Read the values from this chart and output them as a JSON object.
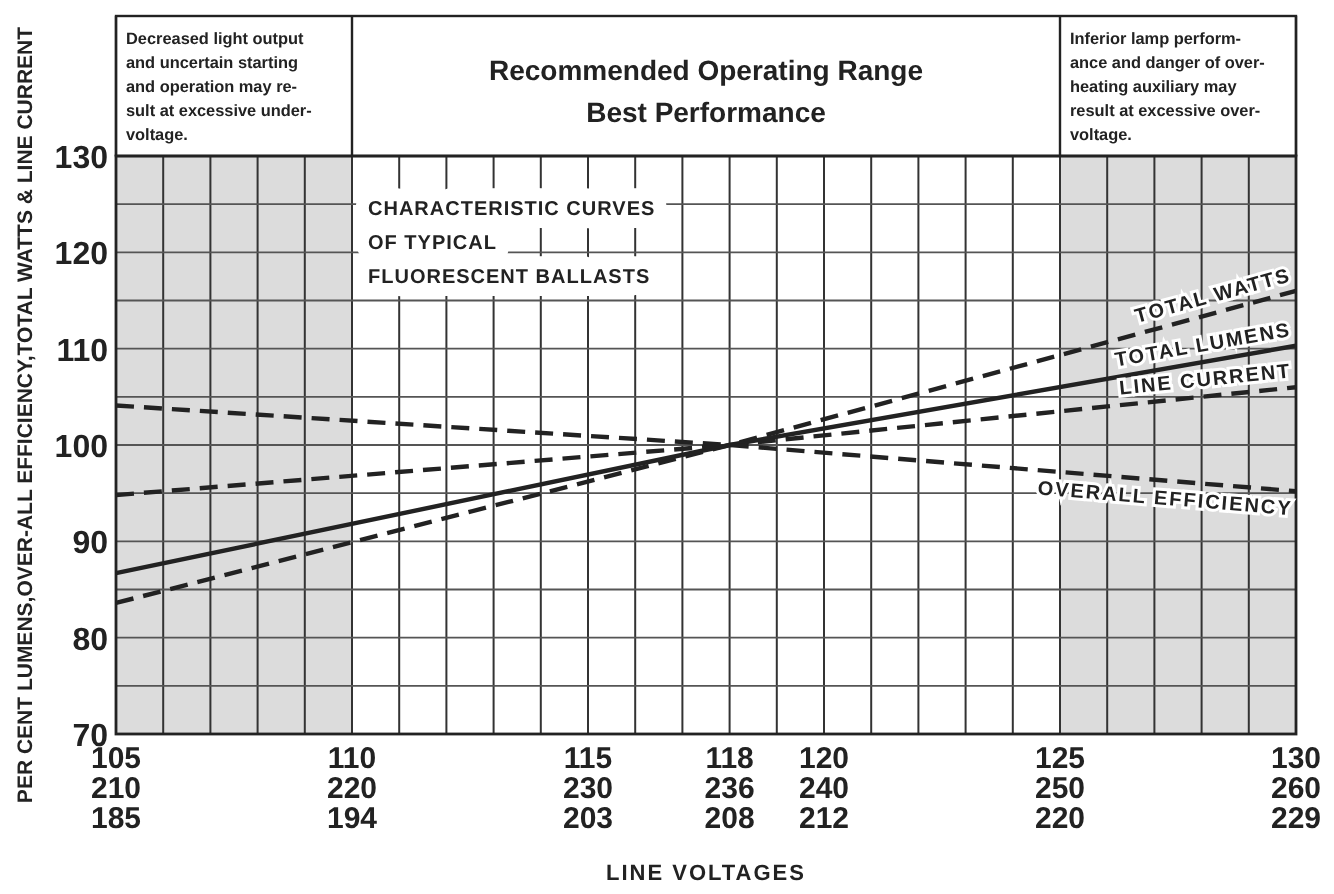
{
  "chart_data": {
    "type": "line",
    "title": "CHARACTERISTIC CURVES\nOF TYPICAL\nFLUORESCENT BALLASTS",
    "xlabel": "LINE VOLTAGES",
    "ylabel": "PER CENT LUMENS,OVER-ALL EFFICIENCY,TOTAL WATTS & LINE CURRENT",
    "annotations": [
      "Recommended Operating Range\nBest Performance",
      "185",
      "194",
      "203",
      "208",
      "212",
      "220",
      "229"
    ],
    "xlim": [
      105,
      130
    ],
    "ylim": [
      70,
      130
    ],
    "xticks": [
      105,
      {
        "value": 106,
        "label": null
      },
      {
        "value": 107,
        "label": null
      },
      {
        "value": 108,
        "label": null
      },
      {
        "value": 109,
        "label": null
      },
      110,
      {
        "value": 111,
        "label": null
      },
      {
        "value": 112,
        "label": null
      },
      {
        "value": 113,
        "label": null
      },
      {
        "value": 114,
        "label": null
      },
      115,
      {
        "value": 116,
        "label": null
      },
      {
        "value": 117,
        "label": null
      },
      118,
      {
        "value": 119,
        "label": null
      },
      120,
      {
        "value": 121,
        "label": null
      },
      {
        "value": 122,
        "label": null
      },
      {
        "value": 123,
        "label": null
      },
      {
        "value": 124,
        "label": null
      },
      125,
      {
        "value": 126,
        "label": null
      },
      {
        "value": 127,
        "label": null
      },
      {
        "value": 128,
        "label": null
      },
      {
        "value": 129,
        "label": null
      },
      130
    ],
    "x2lim": [
      210,
      260
    ],
    "x2ticks": [
      210,
      220,
      230,
      236,
      240,
      250,
      260
    ],
    "yticks": [
      70,
      {
        "value": 75,
        "label": null
      },
      80,
      {
        "value": 85,
        "label": null
      },
      90,
      {
        "value": 95,
        "label": null
      },
      100,
      {
        "value": 105,
        "label": null
      },
      110,
      {
        "value": 115,
        "label": null
      },
      120,
      {
        "value": 125,
        "label": null
      },
      130
    ],
    "grid": true,
    "marker": "none",
    "bands": [
      {
        "axis": "x",
        "from": 105,
        "to": 110,
        "color": "#dcdcdc",
        "label": "Decreased light output\nand uncertain starting\nand operation may re-\nsult at excessive under-\nvoltage."
      },
      {
        "axis": "x",
        "from": 125,
        "to": 130,
        "color": "#dcdcdc",
        "label": "Inferior lamp perform-\nance and danger of over-\nheating auxiliary may\nresult at excessive over-\nvoltage."
      }
    ],
    "series": [
      {
        "name": "TOTAL WATTS",
        "color": "#222222",
        "line_style": "dashed",
        "x": [
          105,
          118,
          130
        ],
        "values": [
          83.6,
          100,
          116
        ]
      },
      {
        "name": "TOTAL LUMENS",
        "color": "#222222",
        "line_style": "solid",
        "x": [
          105,
          118,
          130
        ],
        "values": [
          86.7,
          100,
          110.3
        ]
      },
      {
        "name": "LINE CURRENT",
        "color": "#222222",
        "line_style": "dashed",
        "x": [
          105,
          118,
          130
        ],
        "values": [
          94.8,
          100,
          106
        ]
      },
      {
        "name": "OVERALL EFFICIENCY",
        "color": "#222222",
        "line_style": "dashed",
        "x": [
          105,
          118,
          130
        ],
        "values": [
          104.1,
          100,
          95.2
        ]
      }
    ]
  }
}
